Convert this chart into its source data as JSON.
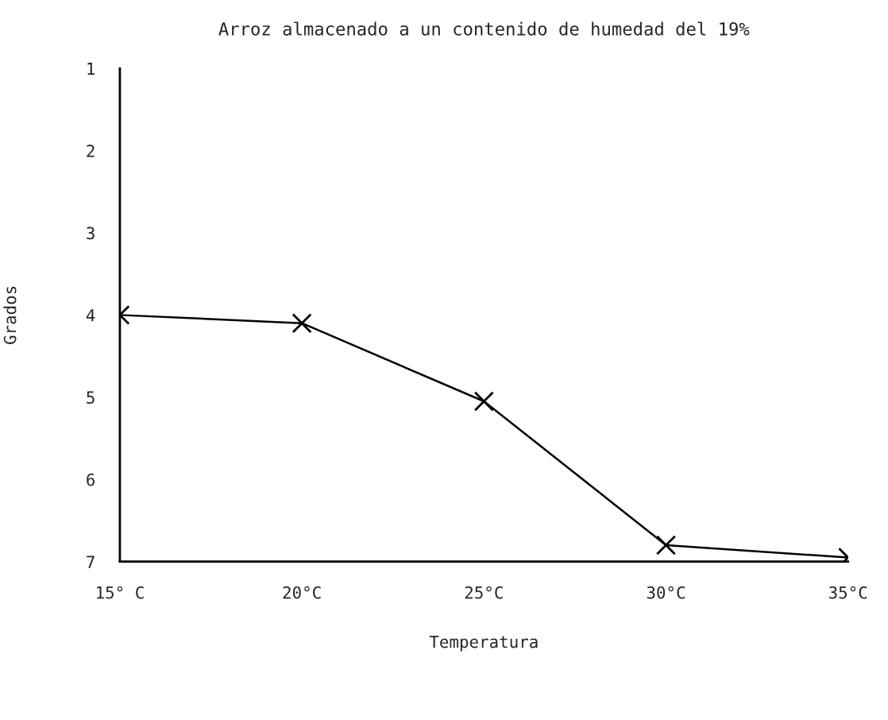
{
  "chart_data": {
    "type": "line",
    "title": "Arroz almacenado a un contenido de humedad del 19%",
    "xlabel": "Temperatura",
    "ylabel": "Grados",
    "x": [
      15,
      20,
      25,
      30,
      35
    ],
    "series": [
      {
        "color": "#000000",
        "values": [
          4.0,
          4.1,
          5.05,
          6.8,
          6.95
        ]
      }
    ],
    "xlim": [
      15,
      35
    ],
    "xticks": [
      {
        "value": 15,
        "label": "15° C"
      },
      {
        "value": 20,
        "label": "20°C"
      },
      {
        "value": 25,
        "label": "25°C"
      },
      {
        "value": 30,
        "label": "30°C"
      },
      {
        "value": 35,
        "label": "35°C"
      }
    ],
    "ylim": [
      7,
      1
    ],
    "yticks": [
      1,
      2,
      3,
      4,
      5,
      6,
      7
    ],
    "grid": false,
    "legend": false,
    "marker": "cross",
    "line_style": "solid"
  }
}
